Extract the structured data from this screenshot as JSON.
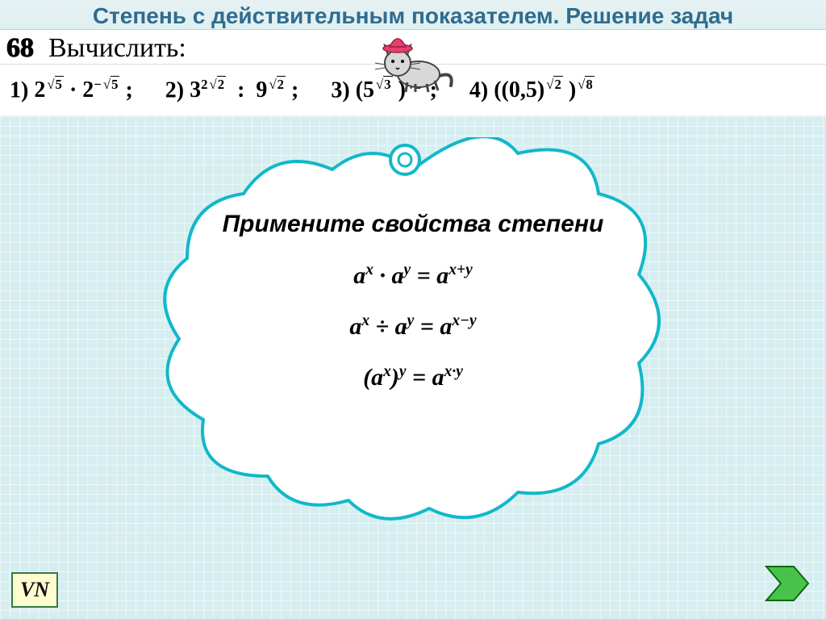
{
  "title": "Степень с действительным показателем. Решение задач",
  "problem": {
    "number": "68",
    "label": "Вычислить:"
  },
  "expressions": [
    {
      "n": "1)",
      "html": "2<sup><span class='sqrt'><span>5</span></span></sup> · 2<sup>−<span class='sqrt'><span>5</span></span></sup> ;"
    },
    {
      "n": "2)",
      "html": "3<sup>2<span class='sqrt'><span>2</span></span></sup>&nbsp; : &nbsp;9<sup><span class='sqrt'><span>2</span></span></sup> ;"
    },
    {
      "n": "3)",
      "html": "(5<sup><span class='sqrt'><span>3</span></span></sup> )<sup><span class='sqrt'><span>3</span></span></sup> ;"
    },
    {
      "n": "4)",
      "html": "((0,5)<sup><span class='sqrt'><span>2</span></span></sup> )<sup><span class='sqrt'><span>8</span></span></sup>"
    }
  ],
  "cloud": {
    "heading": "Примените свойства степени",
    "formulas": [
      "a<sup>x</sup> · a<sup>y</sup> = a<sup>x+y</sup>",
      "a<sup>x</sup> ÷ a<sup>y</sup> = a<sup>x−y</sup>",
      "(a<sup>x</sup>)<sup>y</sup> = a<sup>x·y</sup>"
    ]
  },
  "vn_label": "VN",
  "colors": {
    "title": "#2f6c8f",
    "cloud_stroke": "#12b8c9",
    "cat_body": "#d8d8d8",
    "cat_hat": "#e2416b",
    "next_fill": "#49c24a",
    "next_stroke": "#0a6b0f"
  }
}
